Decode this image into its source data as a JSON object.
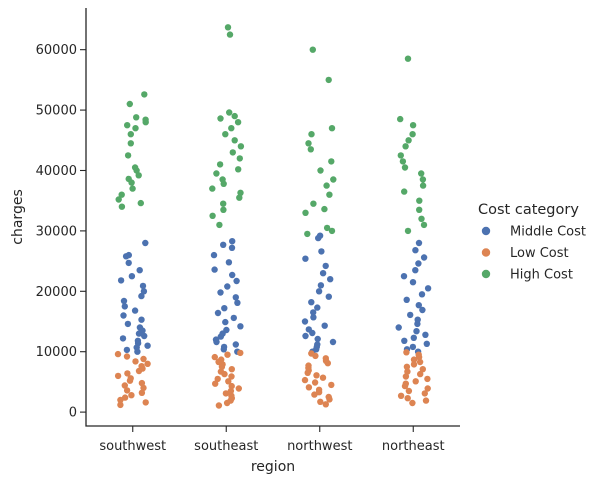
{
  "chart_data": {
    "type": "scatter",
    "variant": "strip",
    "xlabel": "region",
    "ylabel": "charges",
    "categories": [
      "southwest",
      "southeast",
      "northwest",
      "northeast"
    ],
    "ylim": [
      -2300,
      66900
    ],
    "yticks": [
      0,
      10000,
      20000,
      30000,
      40000,
      50000,
      60000
    ],
    "grid": false,
    "legend": {
      "title": "Cost category",
      "placement": "right",
      "entries": [
        {
          "name": "Middle Cost",
          "color": "#4c72b0"
        },
        {
          "name": "Low Cost",
          "color": "#dd8452"
        },
        {
          "name": "High Cost",
          "color": "#55a868"
        }
      ]
    },
    "series": [
      {
        "name": "Middle Cost",
        "color": "#4c72b0",
        "points": {
          "southwest": [
            10000,
            10300,
            10700,
            11000,
            11400,
            11800,
            12200,
            12600,
            13000,
            13500,
            14000,
            14600,
            15300,
            16000,
            16800,
            17500,
            18400,
            19200,
            20000,
            20900,
            21800,
            22500,
            23500,
            24700,
            25800,
            26000,
            28000
          ],
          "southeast": [
            10000,
            10400,
            10800,
            11200,
            11600,
            12000,
            12500,
            13000,
            13600,
            14200,
            14900,
            15600,
            16400,
            17200,
            18100,
            19000,
            19800,
            20800,
            21700,
            22700,
            23600,
            24800,
            26000,
            27200,
            27700,
            28300
          ],
          "northwest": [
            10000,
            10400,
            10800,
            11200,
            11600,
            12100,
            12600,
            13100,
            13700,
            14300,
            15000,
            15700,
            16500,
            17300,
            18200,
            19100,
            20000,
            21000,
            22000,
            23000,
            24200,
            25400,
            26600,
            28800,
            29200
          ],
          "northeast": [
            10000,
            10400,
            10800,
            11300,
            11800,
            12300,
            12800,
            13400,
            14000,
            14600,
            15300,
            16100,
            16900,
            17700,
            18600,
            19500,
            20500,
            21500,
            22500,
            23500,
            24600,
            25600,
            26800,
            28000
          ]
        }
      },
      {
        "name": "Low Cost",
        "color": "#dd8452",
        "points": {
          "southwest": [
            1200,
            1600,
            2000,
            2400,
            2800,
            3200,
            3600,
            4000,
            4400,
            4800,
            5200,
            5600,
            6000,
            6400,
            6800,
            7200,
            7600,
            8000,
            8400,
            8800,
            9200,
            9600
          ],
          "southeast": [
            1100,
            1500,
            1900,
            2300,
            2700,
            3100,
            3500,
            3900,
            4300,
            4700,
            5100,
            5500,
            5900,
            6300,
            6700,
            7100,
            7500,
            7900,
            8300,
            8700,
            9100,
            9500,
            9800
          ],
          "northwest": [
            1300,
            1700,
            2100,
            2500,
            2900,
            3300,
            3700,
            4100,
            4500,
            4900,
            5300,
            5700,
            6100,
            6500,
            6900,
            7300,
            7700,
            8100,
            8500,
            8900,
            9300,
            9700
          ],
          "northeast": [
            1500,
            1900,
            2300,
            2700,
            3100,
            3500,
            3900,
            4300,
            4700,
            5100,
            5500,
            5900,
            6300,
            6700,
            7100,
            7500,
            7900,
            8300,
            8700,
            9100,
            9500,
            9900
          ]
        }
      },
      {
        "name": "High Cost",
        "color": "#55a868",
        "points": {
          "southwest": [
            34000,
            34600,
            35200,
            36000,
            37000,
            38000,
            38600,
            39200,
            40000,
            40500,
            42500,
            44500,
            46000,
            47000,
            47500,
            48000,
            48400,
            48800,
            51000,
            52600
          ],
          "southeast": [
            31000,
            32500,
            33500,
            34500,
            35500,
            36300,
            37000,
            37800,
            38500,
            39500,
            40200,
            41000,
            42000,
            43000,
            44000,
            45000,
            46000,
            47000,
            48000,
            48600,
            49000,
            49600,
            62500,
            63700
          ],
          "northwest": [
            29500,
            30000,
            30500,
            33000,
            33600,
            34500,
            36000,
            37500,
            38500,
            40000,
            41500,
            43500,
            44500,
            46000,
            47000,
            55000,
            60000
          ],
          "northeast": [
            30000,
            31000,
            32000,
            33500,
            35000,
            36500,
            37500,
            38500,
            39500,
            40500,
            41500,
            42500,
            44000,
            45000,
            46000,
            47500,
            48500,
            58500
          ]
        }
      }
    ]
  }
}
